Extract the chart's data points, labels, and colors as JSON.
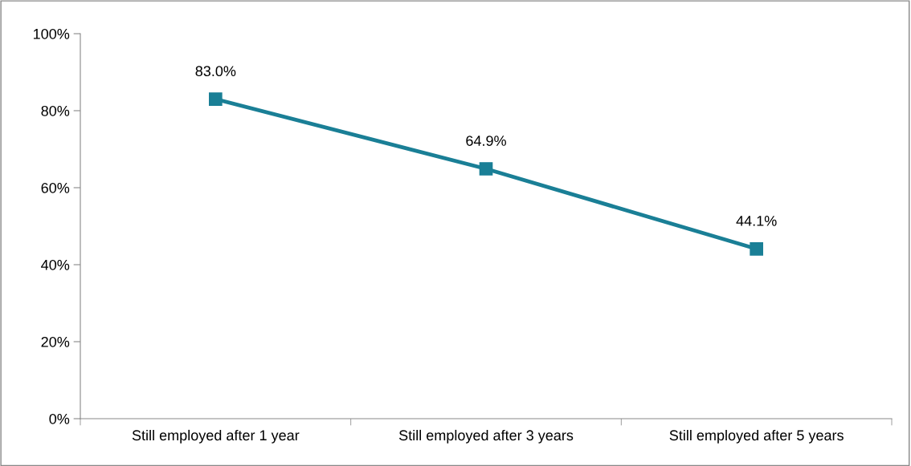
{
  "chart_data": {
    "type": "line",
    "categories": [
      "Still employed after 1 year",
      "Still employed after 3 years",
      "Still employed after 5 years"
    ],
    "series": [
      {
        "color": "#1a7f96",
        "values": [
          83.0,
          64.9,
          44.1
        ],
        "value_labels": [
          "83.0%",
          "64.9%",
          "44.1%"
        ]
      }
    ],
    "ylim": [
      0,
      100
    ],
    "yticks": [
      {
        "value": 0,
        "label": "0%"
      },
      {
        "value": 20,
        "label": "20%"
      },
      {
        "value": 40,
        "label": "40%"
      },
      {
        "value": 60,
        "label": "60%"
      },
      {
        "value": 80,
        "label": "80%"
      },
      {
        "value": 100,
        "label": "100%"
      }
    ],
    "grid": false,
    "marker": "square",
    "line_style": "solid"
  }
}
